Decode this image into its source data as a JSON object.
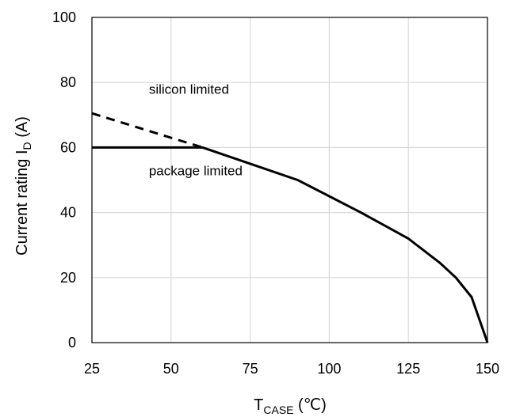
{
  "chart_data": {
    "type": "line",
    "title": "",
    "xlabel": {
      "main": "T",
      "sub": "CASE",
      "unit": " (℃)"
    },
    "ylabel": {
      "main": "Current rating I",
      "sub": "D",
      "unit": " (A)"
    },
    "xlim": [
      25,
      150
    ],
    "ylim": [
      0,
      100
    ],
    "x_ticks": [
      25,
      50,
      75,
      100,
      125,
      150
    ],
    "y_ticks": [
      0,
      20,
      40,
      60,
      80,
      100
    ],
    "grid": true,
    "series": [
      {
        "style": "solid",
        "color": "#000000",
        "points": [
          [
            25,
            60
          ],
          [
            60,
            60
          ],
          [
            75,
            55
          ],
          [
            90,
            50
          ],
          [
            100,
            45
          ],
          [
            110,
            40
          ],
          [
            125,
            32
          ],
          [
            135,
            24.5
          ],
          [
            140,
            20
          ],
          [
            145,
            14
          ],
          [
            150,
            0
          ]
        ]
      },
      {
        "style": "dashed",
        "color": "#000000",
        "points": [
          [
            25,
            70.5
          ],
          [
            60,
            60
          ]
        ]
      }
    ],
    "annotations": [
      {
        "text": "silicon limited",
        "x": 43,
        "y": 76.5
      },
      {
        "text": "package limited",
        "x": 43,
        "y": 51.5
      }
    ]
  }
}
